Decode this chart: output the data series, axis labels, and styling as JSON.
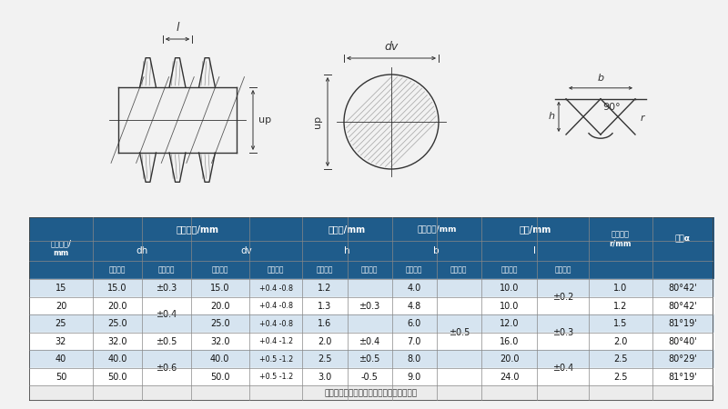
{
  "bg_color": "#f2f2f2",
  "header_blue": "#1f5c8b",
  "header_mid_blue": "#2e74b5",
  "row_alt": "#d6e4f0",
  "row_white": "#ffffff",
  "text_white": "#ffffff",
  "text_dark": "#111111",
  "note_text": "注：螺纹底宽允许偏差属于柭领设计参数。",
  "col0_header": "公称直径/\nmm",
  "g1_header": "基圆直径/mm",
  "g1a": "dh",
  "g1b": "dv",
  "g2_header": "螺纹高/mm",
  "g2a": "h",
  "g3_header": "螺纹底宽/mm",
  "g3a": "b",
  "g4_header": "螺距/mm",
  "g4a": "l",
  "col_r_header": "螺纹根弧\nr/mm",
  "col_angle_header": "导角α",
  "sub_nom": "公称尺寸",
  "sub_tol": "允许偏差",
  "rows": [
    {
      "nom_d": "15",
      "dh": "15.0",
      "dh_tol": "±0.3",
      "dv": "15.0",
      "dv_tol": "+0.4 -0.8",
      "h": "1.2",
      "h_tol": "±0.3",
      "b": "4.0",
      "l": "10.0",
      "l_tol": "±0.2",
      "r": "1.0",
      "angle": "80°42'"
    },
    {
      "nom_d": "20",
      "dh": "20.0",
      "dh_tol": "±0.4",
      "dv": "20.0",
      "dv_tol": "+0.4 -0.8",
      "h": "1.3",
      "h_tol": "±0.3",
      "b": "4.8",
      "l": "10.0",
      "l_tol": "±0.2",
      "r": "1.2",
      "angle": "80°42'"
    },
    {
      "nom_d": "25",
      "dh": "25.0",
      "dh_tol": "±0.4",
      "dv": "25.0",
      "dv_tol": "+0.4 -0.8",
      "h": "1.6",
      "h_tol": "±0.3",
      "b": "6.0",
      "l": "12.0",
      "l_tol": "±0.3",
      "r": "1.5",
      "angle": "81°19'"
    },
    {
      "nom_d": "32",
      "dh": "32.0",
      "dh_tol": "±0.5",
      "dv": "32.0",
      "dv_tol": "+0.4 -1.2",
      "h": "2.0",
      "h_tol": "±0.4",
      "b": "7.0",
      "l": "16.0",
      "l_tol": "±0.3",
      "r": "2.0",
      "angle": "80°40'"
    },
    {
      "nom_d": "40",
      "dh": "40.0",
      "dh_tol": "±0.6",
      "dv": "40.0",
      "dv_tol": "+0.5 -1.2",
      "h": "2.5",
      "h_tol": "±0.5",
      "b": "8.0",
      "l": "20.0",
      "l_tol": "±0.4",
      "r": "2.5",
      "angle": "80°29'"
    },
    {
      "nom_d": "50",
      "dh": "50.0",
      "dh_tol": "±0.6",
      "dv": "50.0",
      "dv_tol": "+0.5 -1.2",
      "h": "3.0",
      "h_tol": "-0.5",
      "b": "9.0",
      "l": "24.0",
      "l_tol": "±0.4",
      "r": "2.5",
      "angle": "81°19'"
    }
  ],
  "b_tol_all": "±0.5",
  "dh_tol_merged": [
    [
      1,
      3,
      "±0.4"
    ],
    [
      4,
      6,
      "±0.6"
    ]
  ],
  "h_tol_merged": [
    [
      0,
      3,
      "±0.3"
    ]
  ],
  "l_tol_merged": [
    [
      0,
      2,
      "±0.2"
    ],
    [
      2,
      4,
      "±0.3"
    ],
    [
      4,
      6,
      "±0.4"
    ]
  ]
}
